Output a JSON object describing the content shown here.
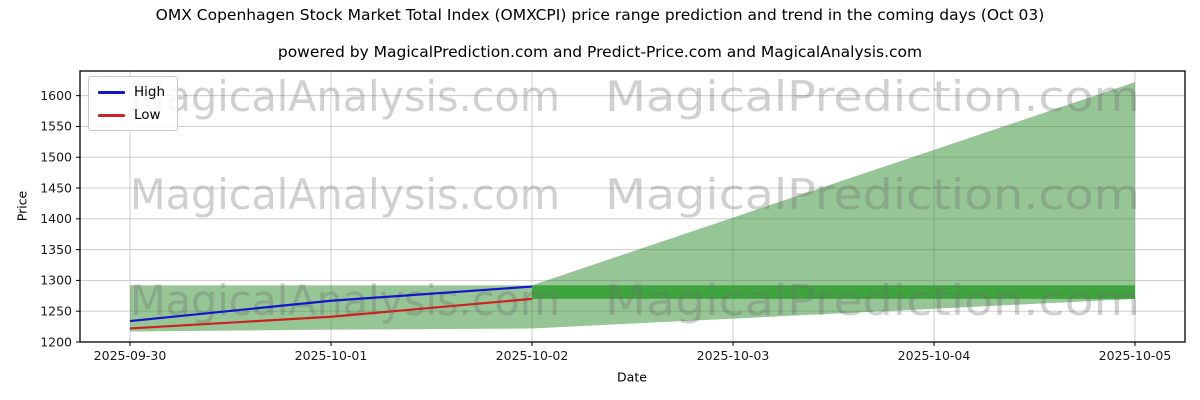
{
  "figure": {
    "title": "OMX Copenhagen Stock Market Total Index (OMXCPI) price range prediction and trend in the coming days (Oct 03)",
    "subtitle": "powered by MagicalPrediction.com and Predict-Price.com and MagicalAnalysis.com"
  },
  "legend": {
    "items": [
      {
        "label": "High",
        "color": "#1414cc"
      },
      {
        "label": "Low",
        "color": "#cc2222"
      }
    ]
  },
  "watermark": {
    "left_text": "MagicalAnalysis.com",
    "right_text": "MagicalPrediction.com",
    "color": "#6e6e6e",
    "opacity": 0.32
  },
  "chart_data": {
    "type": "line",
    "title": "OMX Copenhagen Stock Market Total Index (OMXCPI) price range prediction and trend in the coming days (Oct 03)",
    "xlabel": "Date",
    "ylabel": "Price",
    "x": [
      "2025-09-30",
      "2025-10-01",
      "2025-10-02",
      "2025-10-03",
      "2025-10-04",
      "2025-10-05"
    ],
    "ylim": [
      1200,
      1640
    ],
    "yticks": [
      1200,
      1250,
      1300,
      1350,
      1400,
      1450,
      1500,
      1550,
      1600
    ],
    "grid": true,
    "legend_position": "upper left",
    "series": [
      {
        "name": "High",
        "color": "#1414cc",
        "values": [
          1234,
          1267,
          1290,
          null,
          null,
          null
        ]
      },
      {
        "name": "Low",
        "color": "#cc2222",
        "values": [
          1222,
          1241,
          1270,
          null,
          null,
          null
        ]
      }
    ],
    "range_fan": {
      "upper": [
        1292,
        1292,
        1292,
        1402,
        1512,
        1622
      ],
      "lower": [
        1217,
        1220,
        1222,
        1238,
        1254,
        1270
      ],
      "fill_color": "#2e8b2e",
      "fill_opacity": 0.5
    },
    "forecast_band": {
      "x_from": "2025-10-02",
      "x_to": "2025-10-05",
      "low": 1270,
      "high": 1292,
      "fill_color": "#2f9e2f",
      "fill_opacity": 0.85
    },
    "gridline_color": "#c8c8c8",
    "axis_color": "#000000",
    "tick_label_color": "#1a1a1a"
  }
}
